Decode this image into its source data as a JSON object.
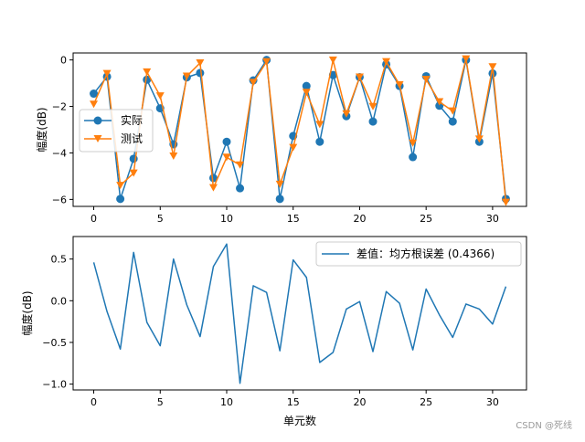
{
  "chart_data": [
    {
      "type": "line",
      "xlabel": "",
      "ylabel": "幅度(dB)",
      "xlim": [
        -1.55,
        32.55
      ],
      "ylim": [
        -6.3,
        0.3
      ],
      "xticks": [
        0,
        5,
        10,
        15,
        20,
        25,
        30
      ],
      "yticks": [
        0,
        -2,
        -4,
        -6
      ],
      "legend_position": "center-left",
      "x": [
        0,
        1,
        2,
        3,
        4,
        5,
        6,
        7,
        8,
        9,
        10,
        11,
        12,
        13,
        14,
        15,
        16,
        17,
        18,
        19,
        20,
        21,
        22,
        23,
        24,
        25,
        26,
        27,
        28,
        29,
        30,
        31
      ],
      "series": [
        {
          "name": "实际",
          "marker": "circle",
          "color": "#1f77b4",
          "values": [
            -1.45,
            -0.72,
            -5.98,
            -4.25,
            -0.85,
            -2.08,
            -3.63,
            -0.75,
            -0.56,
            -5.08,
            -3.52,
            -5.52,
            -0.88,
            0.0,
            -5.98,
            -3.27,
            -1.12,
            -3.52,
            -0.65,
            -2.42,
            -0.74,
            -2.65,
            -0.19,
            -1.12,
            -4.18,
            -0.7,
            -1.97,
            -2.65,
            0.0,
            -3.52,
            -0.58,
            -5.98
          ]
        },
        {
          "name": "测试",
          "marker": "triangle-down",
          "color": "#ff7f0e",
          "values": [
            -1.91,
            -0.59,
            -5.4,
            -4.87,
            -0.52,
            -1.55,
            -4.14,
            -0.7,
            -0.13,
            -5.5,
            -4.19,
            -4.52,
            -0.97,
            -0.08,
            -5.35,
            -3.77,
            -1.4,
            -2.78,
            -0.01,
            -2.32,
            -0.74,
            -2.01,
            -0.08,
            -1.07,
            -3.58,
            -0.84,
            -1.8,
            -2.2,
            0.04,
            -3.41,
            -0.3,
            -6.13
          ]
        }
      ]
    },
    {
      "type": "line",
      "xlabel": "单元数",
      "ylabel": "幅度(dB)",
      "xlim": [
        -1.55,
        32.55
      ],
      "ylim": [
        -1.07,
        0.77
      ],
      "xticks": [
        0,
        5,
        10,
        15,
        20,
        25,
        30
      ],
      "yticks": [
        0.5,
        0.0,
        -0.5,
        -1.0
      ],
      "legend_position": "top-right",
      "x": [
        0,
        1,
        2,
        3,
        4,
        5,
        6,
        7,
        8,
        9,
        10,
        11,
        12,
        13,
        14,
        15,
        16,
        17,
        18,
        19,
        20,
        21,
        22,
        23,
        24,
        25,
        26,
        27,
        28,
        29,
        30,
        31
      ],
      "series": [
        {
          "name": "差值：均方根误差 (0.4366)",
          "color": "#1f77b4",
          "values": [
            0.46,
            -0.13,
            -0.58,
            0.58,
            -0.26,
            -0.54,
            0.5,
            -0.05,
            -0.43,
            0.41,
            0.68,
            -0.99,
            0.18,
            0.1,
            -0.6,
            0.49,
            0.28,
            -0.74,
            -0.62,
            -0.1,
            -0.01,
            -0.61,
            0.11,
            -0.03,
            -0.59,
            0.14,
            -0.17,
            -0.44,
            -0.04,
            -0.1,
            -0.28,
            0.17
          ]
        }
      ]
    }
  ],
  "watermark": "CSDN @死线",
  "colors": {
    "series1": "#1f77b4",
    "series2": "#ff7f0e",
    "axis": "#000000"
  }
}
